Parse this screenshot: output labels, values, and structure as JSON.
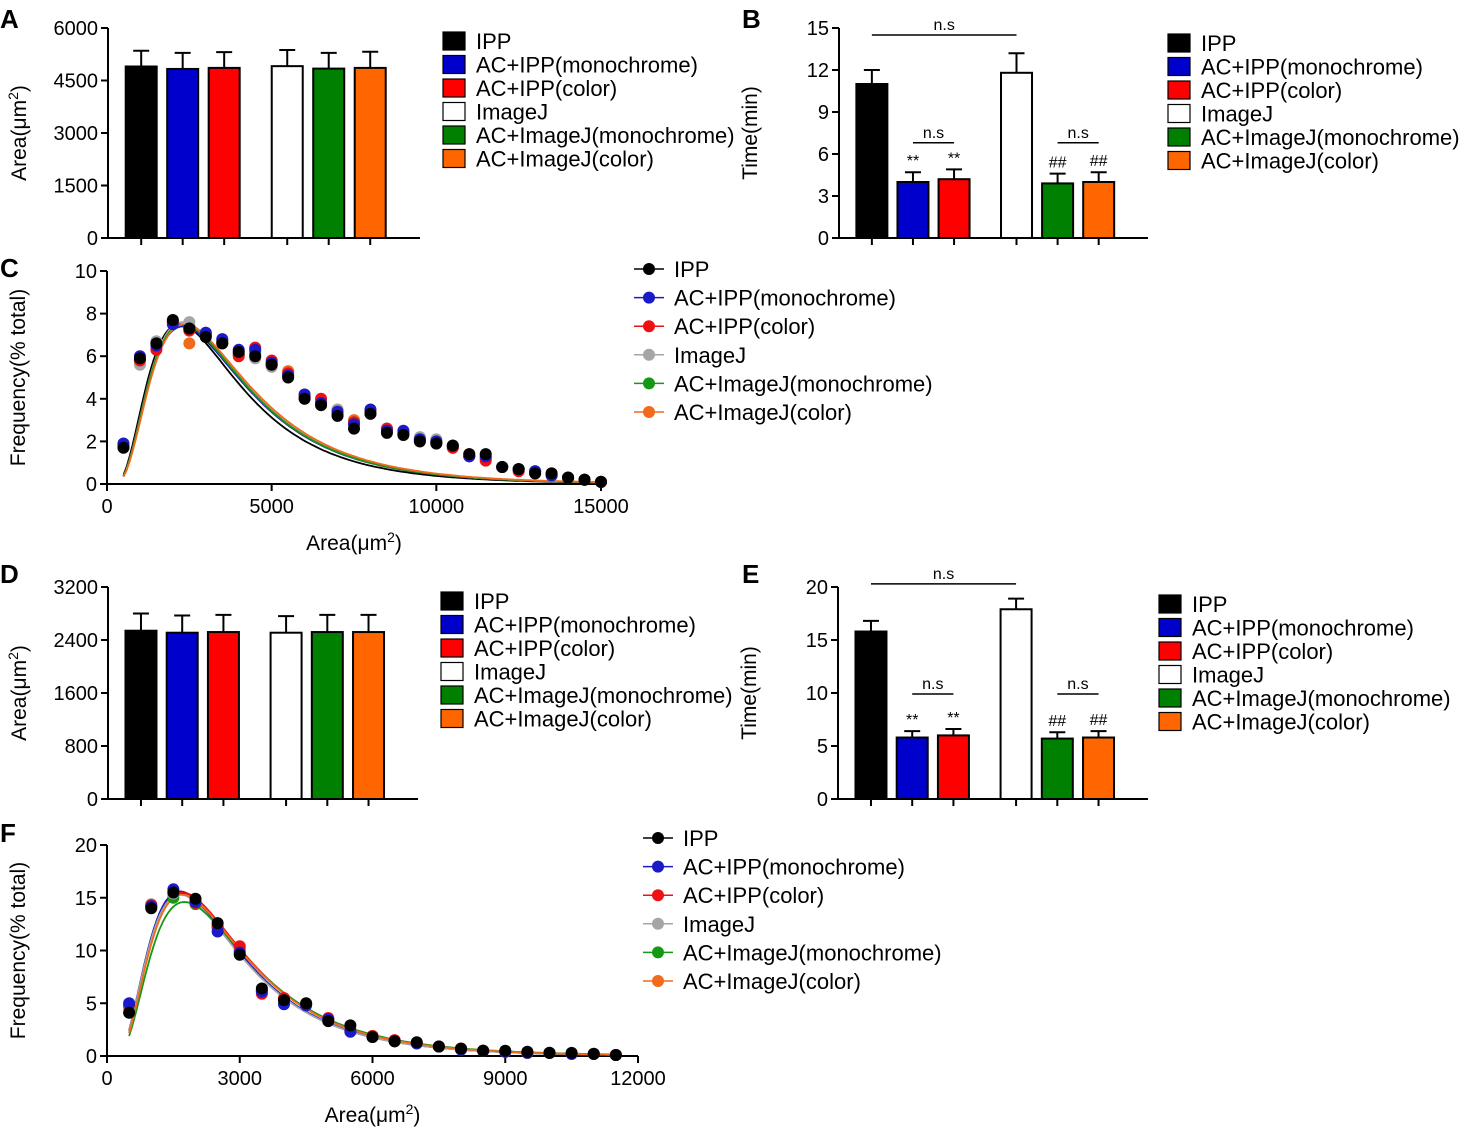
{
  "series_names": [
    "IPP",
    "AC+IPP(monochrome)",
    "AC+IPP(color)",
    "ImageJ",
    "AC+ImageJ(monochrome)",
    "AC+ImageJ(color)"
  ],
  "colors": {
    "bar": [
      "#000000",
      "#0000cc",
      "#ff0000",
      "#ffffff",
      "#008000",
      "#ff6600"
    ],
    "dot": [
      "#000000",
      "#1a1ac8",
      "#ee1111",
      "#a6a6a6",
      "#159915",
      "#f26a1b"
    ]
  },
  "chart_data": [
    {
      "id": "A",
      "panel_label": "A",
      "type": "bar",
      "categories": [
        "IPP",
        "AC+IPP(monochrome)",
        "AC+IPP(color)",
        "ImageJ",
        "AC+ImageJ(monochrome)",
        "AC+ImageJ(color)"
      ],
      "values": [
        4900,
        4830,
        4860,
        4910,
        4840,
        4860
      ],
      "errors": [
        450,
        460,
        450,
        460,
        450,
        460
      ],
      "ylim": [
        0,
        6000
      ],
      "yticks": [
        "0",
        "1500",
        "3000",
        "4500",
        "6000"
      ],
      "ylabel": "Area(μm",
      "ylabel_sup": "2",
      "ylabel_close": ")",
      "annotations": []
    },
    {
      "id": "B",
      "panel_label": "B",
      "type": "bar",
      "categories": [
        "IPP",
        "AC+IPP(monochrome)",
        "AC+IPP(color)",
        "ImageJ",
        "AC+ImageJ(monochrome)",
        "AC+ImageJ(color)"
      ],
      "values": [
        11.0,
        4.0,
        4.2,
        11.8,
        3.9,
        4.0
      ],
      "errors": [
        1.0,
        0.7,
        0.7,
        1.4,
        0.7,
        0.7
      ],
      "ylim": [
        0,
        15
      ],
      "yticks": [
        "0",
        "3",
        "6",
        "9",
        "12",
        "15"
      ],
      "ylabel": "Time(min)",
      "ylabel_sup": "",
      "ylabel_close": "",
      "annotations": [
        {
          "type": "bracket",
          "from": 0,
          "to": 3,
          "y": 14.5,
          "text": "n.s"
        },
        {
          "type": "bracket",
          "from": 1,
          "to": 2,
          "y": 6.8,
          "text": "n.s"
        },
        {
          "type": "bracket",
          "from": 4,
          "to": 5,
          "y": 6.8,
          "text": "n.s"
        },
        {
          "type": "mark",
          "bar": 1,
          "text": "**"
        },
        {
          "type": "mark",
          "bar": 2,
          "text": "**"
        },
        {
          "type": "mark",
          "bar": 4,
          "text": "##"
        },
        {
          "type": "mark",
          "bar": 5,
          "text": "##"
        }
      ]
    },
    {
      "id": "C",
      "panel_label": "C",
      "type": "scatter",
      "xlim": [
        0,
        15000
      ],
      "ylim": [
        0,
        10
      ],
      "xticks": [
        "0",
        "5000",
        "10000",
        "15000"
      ],
      "yticks": [
        "0",
        "2",
        "4",
        "6",
        "8",
        "10"
      ],
      "xlabel": "Area(μm",
      "xlabel_sup": "2",
      "xlabel_close": ")",
      "ylabel": "Frequency(% total)",
      "x": [
        500,
        1000,
        1500,
        2000,
        2500,
        3000,
        3500,
        4000,
        4500,
        5000,
        5500,
        6000,
        6500,
        7000,
        7500,
        8000,
        8500,
        9000,
        9500,
        10000,
        10500,
        11000,
        11500,
        12000,
        12500,
        13000,
        13500,
        14000,
        14500,
        15000
      ],
      "series": [
        {
          "name": "IPP",
          "values": [
            1.7,
            5.9,
            6.6,
            7.7,
            7.3,
            6.9,
            6.6,
            6.2,
            6.0,
            5.6,
            5.0,
            4.0,
            3.7,
            3.2,
            2.6,
            3.3,
            2.4,
            2.3,
            2.0,
            1.9,
            1.8,
            1.4,
            1.4,
            0.8,
            0.7,
            0.5,
            0.5,
            0.3,
            0.2,
            0.1
          ],
          "fit_peak": 7.5,
          "fit_peak_x": 2200
        },
        {
          "name": "AC+IPP(monochrome)",
          "values": [
            1.9,
            6.0,
            6.5,
            7.5,
            7.3,
            7.1,
            6.8,
            6.3,
            6.3,
            5.7,
            5.1,
            4.2,
            3.8,
            3.4,
            2.8,
            3.5,
            2.5,
            2.5,
            2.1,
            2.0,
            1.8,
            1.3,
            1.3,
            0.8,
            0.7,
            0.6,
            0.4,
            0.3,
            0.2,
            0.1
          ],
          "fit_peak": 7.4,
          "fit_peak_x": 2300
        },
        {
          "name": "AC+IPP(color)",
          "values": [
            1.8,
            5.8,
            6.3,
            7.6,
            7.2,
            7.0,
            6.6,
            6.0,
            6.4,
            5.8,
            5.2,
            4.1,
            4.0,
            3.3,
            2.9,
            3.4,
            2.6,
            2.4,
            2.0,
            1.9,
            1.7,
            1.3,
            1.1,
            0.8,
            0.6,
            0.5,
            0.5,
            0.3,
            0.2,
            0.1
          ],
          "fit_peak": 7.5,
          "fit_peak_x": 2300
        },
        {
          "name": "ImageJ",
          "values": [
            1.8,
            5.6,
            6.7,
            7.5,
            7.6,
            7.0,
            6.7,
            6.1,
            5.9,
            5.5,
            5.1,
            4.0,
            3.8,
            3.5,
            2.9,
            3.3,
            2.6,
            2.4,
            2.2,
            2.1,
            1.7,
            1.3,
            1.2,
            0.8,
            0.7,
            0.6,
            0.4,
            0.3,
            0.2,
            0.1
          ],
          "fit_peak": 7.6,
          "fit_peak_x": 2300
        },
        {
          "name": "AC+ImageJ(monochrome)",
          "values": [
            1.8,
            5.8,
            6.6,
            7.6,
            7.4,
            7.0,
            6.7,
            6.1,
            6.1,
            5.6,
            5.1,
            4.1,
            3.8,
            3.4,
            2.9,
            3.3,
            2.6,
            2.4,
            2.1,
            2.0,
            1.7,
            1.3,
            1.2,
            0.8,
            0.7,
            0.6,
            0.4,
            0.3,
            0.2,
            0.1
          ],
          "fit_peak": 7.5,
          "fit_peak_x": 2300
        },
        {
          "name": "AC+ImageJ(color)",
          "values": [
            1.8,
            5.8,
            6.6,
            7.6,
            6.6,
            7.1,
            6.7,
            6.1,
            6.2,
            5.6,
            5.3,
            4.2,
            3.9,
            3.5,
            3.0,
            3.3,
            2.5,
            2.4,
            2.1,
            2.0,
            1.8,
            1.4,
            1.2,
            0.8,
            0.7,
            0.6,
            0.4,
            0.3,
            0.2,
            0.1
          ],
          "fit_peak": 7.5,
          "fit_peak_x": 2350
        }
      ]
    },
    {
      "id": "D",
      "panel_label": "D",
      "type": "bar",
      "categories": [
        "IPP",
        "AC+IPP(monochrome)",
        "AC+IPP(color)",
        "ImageJ",
        "AC+ImageJ(monochrome)",
        "AC+ImageJ(color)"
      ],
      "values": [
        2540,
        2510,
        2520,
        2510,
        2520,
        2520
      ],
      "errors": [
        260,
        260,
        260,
        250,
        260,
        260
      ],
      "ylim": [
        0,
        3200
      ],
      "yticks": [
        "0",
        "800",
        "1600",
        "2400",
        "3200"
      ],
      "ylabel": "Area(μm",
      "ylabel_sup": "2",
      "ylabel_close": ")",
      "annotations": []
    },
    {
      "id": "E",
      "panel_label": "E",
      "type": "bar",
      "categories": [
        "IPP",
        "AC+IPP(monochrome)",
        "AC+IPP(color)",
        "ImageJ",
        "AC+ImageJ(monochrome)",
        "AC+ImageJ(color)"
      ],
      "values": [
        15.8,
        5.8,
        6.0,
        17.9,
        5.7,
        5.8
      ],
      "errors": [
        1.0,
        0.6,
        0.6,
        1.0,
        0.6,
        0.6
      ],
      "ylim": [
        0,
        20
      ],
      "yticks": [
        "0",
        "5",
        "10",
        "15",
        "20"
      ],
      "ylabel": "Time(min)",
      "ylabel_sup": "",
      "ylabel_close": "",
      "annotations": [
        {
          "type": "bracket",
          "from": 0,
          "to": 3,
          "y": 20.3,
          "text": "n.s"
        },
        {
          "type": "bracket",
          "from": 1,
          "to": 2,
          "y": 9.9,
          "text": "n.s"
        },
        {
          "type": "bracket",
          "from": 4,
          "to": 5,
          "y": 9.9,
          "text": "n.s"
        },
        {
          "type": "mark",
          "bar": 1,
          "text": "**"
        },
        {
          "type": "mark",
          "bar": 2,
          "text": "**"
        },
        {
          "type": "mark",
          "bar": 4,
          "text": "##"
        },
        {
          "type": "mark",
          "bar": 5,
          "text": "##"
        }
      ]
    },
    {
      "id": "F",
      "panel_label": "F",
      "type": "scatter",
      "xlim": [
        0,
        12000
      ],
      "ylim": [
        0,
        20
      ],
      "xticks": [
        "0",
        "3000",
        "6000",
        "9000",
        "12000"
      ],
      "yticks": [
        "0",
        "5",
        "10",
        "15",
        "20"
      ],
      "xlabel": "Area(μm",
      "xlabel_sup": "2",
      "xlabel_close": ")",
      "ylabel": "Frequency(% total)",
      "x": [
        500,
        1000,
        1500,
        2000,
        2500,
        3000,
        3500,
        4000,
        4500,
        5000,
        5500,
        6000,
        6500,
        7000,
        7500,
        8000,
        8500,
        9000,
        9500,
        10000,
        10500,
        11000,
        11500
      ],
      "series": [
        {
          "name": "IPP",
          "values": [
            4.1,
            14.0,
            15.5,
            14.9,
            12.6,
            9.6,
            6.4,
            5.3,
            5.0,
            3.3,
            2.9,
            1.8,
            1.4,
            1.3,
            0.9,
            0.7,
            0.5,
            0.5,
            0.4,
            0.3,
            0.3,
            0.2,
            0.1
          ],
          "fit_peak": 15.4,
          "fit_peak_x": 1650
        },
        {
          "name": "AC+IPP(monochrome)",
          "values": [
            5.0,
            14.2,
            15.8,
            14.6,
            11.8,
            9.8,
            6.1,
            4.9,
            4.8,
            3.5,
            2.3,
            1.8,
            1.4,
            1.2,
            0.9,
            0.6,
            0.5,
            0.4,
            0.3,
            0.3,
            0.2,
            0.2,
            0.1
          ],
          "fit_peak": 15.6,
          "fit_peak_x": 1650
        },
        {
          "name": "AC+IPP(color)",
          "values": [
            4.8,
            14.3,
            15.6,
            14.5,
            12.2,
            10.4,
            5.9,
            5.5,
            4.9,
            3.6,
            2.4,
            1.9,
            1.5,
            1.2,
            0.9,
            0.7,
            0.5,
            0.4,
            0.3,
            0.3,
            0.2,
            0.2,
            0.1
          ],
          "fit_peak": 15.5,
          "fit_peak_x": 1700
        },
        {
          "name": "ImageJ",
          "values": [
            4.7,
            14.4,
            15.4,
            14.7,
            12.3,
            10.0,
            6.2,
            5.2,
            4.9,
            3.4,
            2.5,
            1.8,
            1.4,
            1.2,
            0.9,
            0.6,
            0.5,
            0.4,
            0.3,
            0.3,
            0.2,
            0.2,
            0.1
          ],
          "fit_peak": 15.3,
          "fit_peak_x": 1650
        },
        {
          "name": "AC+ImageJ(monochrome)",
          "values": [
            4.6,
            14.1,
            15.0,
            14.4,
            12.2,
            10.1,
            6.3,
            5.3,
            4.9,
            3.5,
            2.5,
            1.9,
            1.4,
            1.2,
            0.9,
            0.7,
            0.5,
            0.4,
            0.3,
            0.3,
            0.2,
            0.2,
            0.1
          ],
          "fit_peak": 14.6,
          "fit_peak_x": 1750
        },
        {
          "name": "AC+ImageJ(color)",
          "values": [
            4.7,
            14.2,
            15.3,
            14.6,
            12.3,
            10.2,
            6.2,
            5.3,
            4.9,
            3.5,
            2.5,
            1.9,
            1.4,
            1.2,
            0.9,
            0.7,
            0.5,
            0.4,
            0.3,
            0.3,
            0.2,
            0.2,
            0.1
          ],
          "fit_peak": 15.3,
          "fit_peak_x": 1700
        }
      ]
    }
  ]
}
